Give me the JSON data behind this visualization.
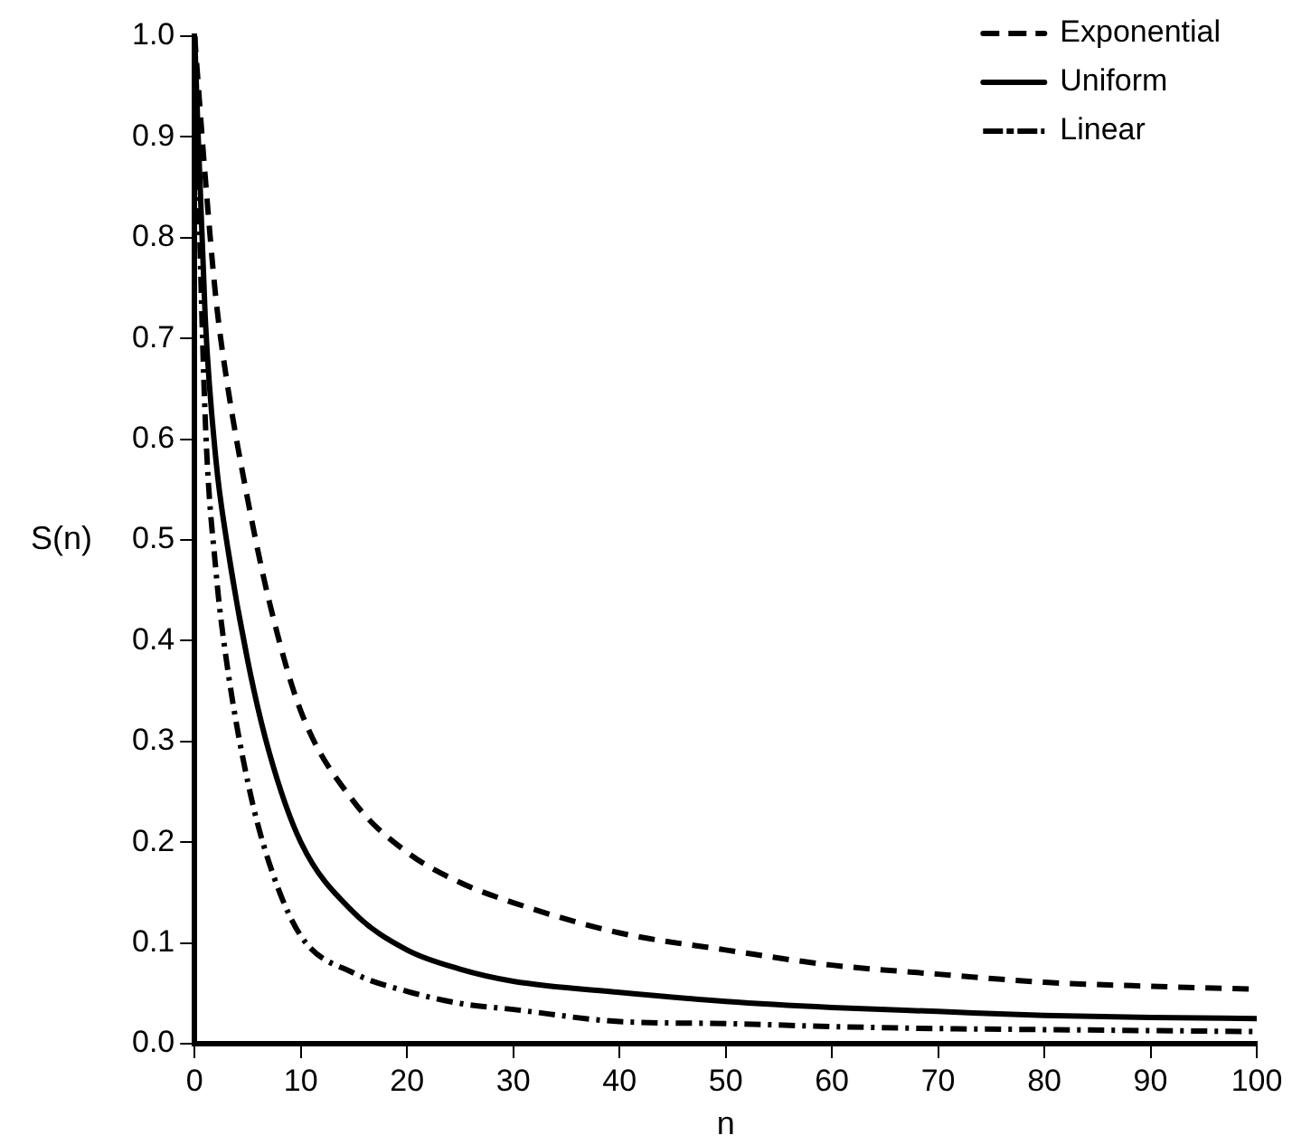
{
  "chart_data": {
    "type": "line",
    "xlabel": "n",
    "ylabel": "S(n)",
    "xlim": [
      0,
      100
    ],
    "ylim": [
      0,
      1
    ],
    "xticks": [
      0,
      10,
      20,
      30,
      40,
      50,
      60,
      70,
      80,
      90,
      100
    ],
    "yticks": [
      {
        "value": 0,
        "label": "0.0"
      },
      {
        "value": 0.1,
        "label": "0.1"
      },
      {
        "value": 0.2,
        "label": "0.2"
      },
      {
        "value": 0.3,
        "label": "0.3"
      },
      {
        "value": 0.4,
        "label": "0.4"
      },
      {
        "value": 0.5,
        "label": "0.5"
      },
      {
        "value": 0.6,
        "label": "0.6"
      },
      {
        "value": 0.7,
        "label": "0.7"
      },
      {
        "value": 0.8,
        "label": "0.8"
      },
      {
        "value": 0.9,
        "label": "0.9"
      },
      {
        "value": 1,
        "label": "1.0"
      }
    ],
    "grid": false,
    "legend": "top right",
    "marker": "none",
    "x": [
      0,
      1,
      2,
      3,
      5,
      7,
      10,
      15,
      20,
      25,
      30,
      40,
      50,
      60,
      70,
      80,
      90,
      100
    ],
    "series": [
      {
        "name": "Exponential",
        "color": "#000000",
        "line_style": "dashed",
        "values": [
          1,
          0.86,
          0.74,
          0.66,
          0.54,
          0.44,
          0.33,
          0.24,
          0.19,
          0.16,
          0.14,
          0.11,
          0.093,
          0.078,
          0.069,
          0.061,
          0.057,
          0.054
        ]
      },
      {
        "name": "Uniform",
        "color": "#000000",
        "line_style": "solid",
        "values": [
          1,
          0.72,
          0.58,
          0.5,
          0.38,
          0.29,
          0.2,
          0.13,
          0.093,
          0.074,
          0.062,
          0.051,
          0.042,
          0.036,
          0.032,
          0.028,
          0.026,
          0.025
        ]
      },
      {
        "name": "Linear",
        "color": "#000000",
        "line_style": "dashdot",
        "values": [
          1,
          0.62,
          0.47,
          0.38,
          0.26,
          0.18,
          0.107,
          0.07,
          0.052,
          0.04,
          0.034,
          0.022,
          0.02,
          0.017,
          0.015,
          0.014,
          0.013,
          0.012
        ]
      }
    ]
  }
}
